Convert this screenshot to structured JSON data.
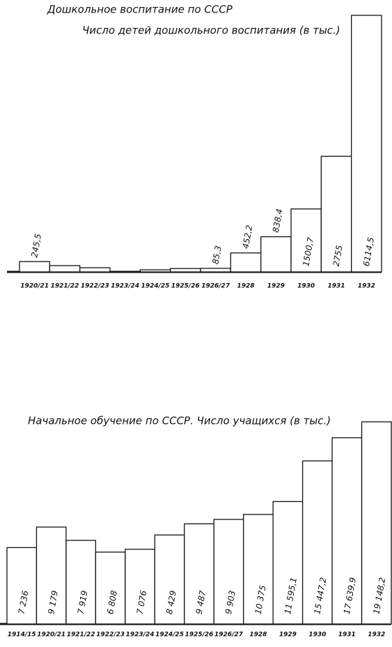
{
  "chart_data": [
    {
      "type": "bar",
      "title": "Дошкольное воспитание по СССР",
      "subtitle": "Число детей дошкольного воспитания (в тыс.)",
      "categories": [
        "1920/21",
        "1921/22",
        "1922/23",
        "1923/24",
        "1924/25",
        "1925/26",
        "1926/27",
        "1928",
        "1929",
        "1930",
        "1931",
        "1932"
      ],
      "values": [
        245.5,
        150,
        100,
        0,
        50,
        80,
        85.3,
        452.2,
        838.4,
        1500.7,
        2755,
        6114.5
      ],
      "value_labels": [
        "245,5",
        null,
        null,
        null,
        null,
        null,
        "85,3",
        "452,2",
        "838,4",
        "1500,7",
        "2755",
        "6114,5"
      ],
      "color": "#ffffff"
    },
    {
      "type": "bar",
      "title": "Начальное обучение по СССР.  Число учащихся (в тыс.)",
      "categories": [
        "1914/15",
        "1920/21",
        "1921/22",
        "1922/23",
        "1923/24",
        "1924/25",
        "1925/26",
        "1926/27",
        "1928",
        "1929",
        "1930",
        "1931",
        "1932"
      ],
      "values": [
        7236,
        9179,
        7919,
        6808,
        7076,
        8429,
        9487,
        9903,
        10375,
        11595.1,
        15447.2,
        17639.9,
        19148.2
      ],
      "value_labels": [
        "7 236",
        "9 179",
        "7 919",
        "6 808",
        "7 076",
        "8 429",
        "9 487",
        "9 903",
        "10 375",
        "11 595,1",
        "15 447,2",
        "17 639,9",
        "19 148,2"
      ],
      "color": "#ffffff"
    }
  ]
}
